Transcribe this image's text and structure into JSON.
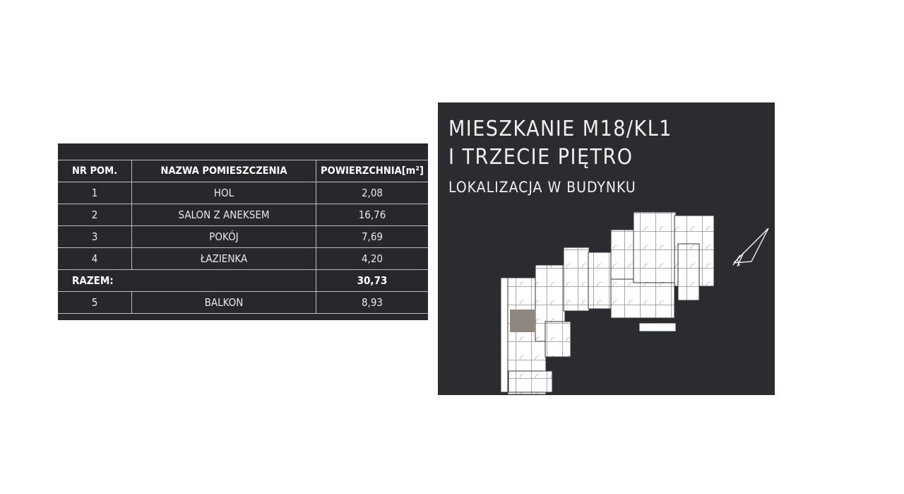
{
  "table": {
    "headers": [
      "NR POM.",
      "NAZWA POMIESZCZENIA",
      "POWIERZCHNIA[m²]"
    ],
    "rows": [
      {
        "nr": "1",
        "name": "HOL",
        "area": "2,08"
      },
      {
        "nr": "2",
        "name": "SALON Z ANEKSEM",
        "area": "16,76"
      },
      {
        "nr": "3",
        "name": "POKÓJ",
        "area": "7,69"
      },
      {
        "nr": "4",
        "name": "ŁAZIENKA",
        "area": "4,20"
      }
    ],
    "total": {
      "label": "RAZEM:",
      "area": "30,73"
    },
    "extra": {
      "nr": "5",
      "name": "BALKON",
      "area": "8,93"
    }
  },
  "panel": {
    "title_line1": "MIESZKANIE M18/KL1",
    "title_line2": "I TRZECIE PIĘTRO",
    "subtitle": "LOKALIZACJA W BUDYNKU",
    "highlight_color": "#8e877f",
    "compass_icon": "north-arrow-icon"
  }
}
